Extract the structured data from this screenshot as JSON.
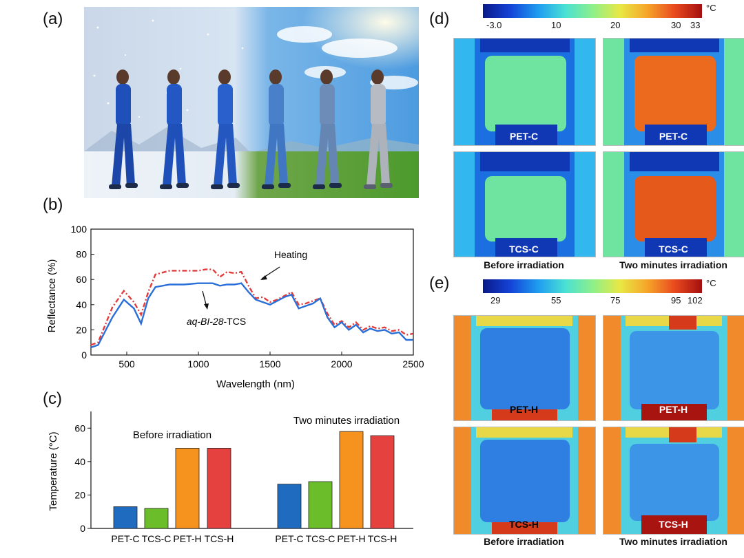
{
  "panels": {
    "a": "(a)",
    "b": "(b)",
    "c": "(c)",
    "d": "(d)",
    "e": "(e)"
  },
  "panel_b": {
    "ylabel": "Reflectance (%)",
    "xlabel": "Wavelength (nm)",
    "annotation_heating": "Heating",
    "annotation_sample_prefix": "aq-BI-28",
    "annotation_sample_suffix": "-TCS"
  },
  "panel_c": {
    "ylabel": "Temperature (°C)",
    "group1_label": "Before irradiation",
    "group2_label": "Two minutes irradiation"
  },
  "panel_d": {
    "unit": "°C",
    "ticks": [
      "-3.0",
      "10",
      "20",
      "30",
      "33"
    ],
    "labels": [
      "PET-C",
      "PET-C",
      "TCS-C",
      "TCS-C"
    ],
    "captions": [
      "Before irradiation",
      "Two minutes irradiation"
    ]
  },
  "panel_e": {
    "unit": "°C",
    "ticks": [
      "29",
      "55",
      "75",
      "95",
      "102"
    ],
    "labels": [
      "PET-H",
      "PET-H",
      "TCS-H",
      "TCS-H"
    ],
    "captions": [
      "Before irradiation",
      "Two minutes irradiation"
    ]
  },
  "chart_data": [
    {
      "type": "line",
      "xlim": [
        250,
        2500
      ],
      "ylim": [
        0,
        100
      ],
      "xticks": [
        500,
        1000,
        1500,
        2000,
        2500
      ],
      "yticks": [
        0,
        20,
        40,
        60,
        80,
        100
      ],
      "series": [
        {
          "name": "Heating",
          "color": "#e23b3b",
          "style": "dash-dot",
          "x": [
            250,
            300,
            400,
            480,
            550,
            600,
            650,
            700,
            800,
            900,
            1000,
            1050,
            1100,
            1150,
            1200,
            1250,
            1300,
            1350,
            1400,
            1450,
            1500,
            1550,
            1600,
            1650,
            1700,
            1750,
            1800,
            1850,
            1900,
            1950,
            2000,
            2050,
            2100,
            2150,
            2200,
            2250,
            2300,
            2350,
            2400,
            2450,
            2500
          ],
          "y": [
            8,
            10,
            38,
            51,
            42,
            32,
            50,
            64,
            67,
            67,
            67,
            68,
            68,
            62,
            66,
            65,
            66,
            55,
            45,
            46,
            42,
            44,
            47,
            50,
            40,
            41,
            43,
            45,
            33,
            24,
            27,
            22,
            26,
            20,
            23,
            21,
            22,
            19,
            20,
            16,
            17
          ]
        },
        {
          "name": "aq-BI-28-TCS",
          "color": "#2a6fd8",
          "style": "solid",
          "x": [
            250,
            300,
            400,
            480,
            550,
            600,
            650,
            700,
            800,
            900,
            1000,
            1050,
            1100,
            1150,
            1200,
            1250,
            1300,
            1350,
            1400,
            1450,
            1500,
            1550,
            1600,
            1650,
            1700,
            1750,
            1800,
            1850,
            1900,
            1950,
            2000,
            2050,
            2100,
            2150,
            2200,
            2250,
            2300,
            2350,
            2400,
            2450,
            2500
          ],
          "y": [
            6,
            8,
            30,
            44,
            37,
            25,
            45,
            54,
            56,
            56,
            57,
            57,
            57,
            55,
            56,
            56,
            57,
            50,
            44,
            42,
            40,
            43,
            46,
            48,
            37,
            39,
            41,
            45,
            30,
            22,
            26,
            20,
            24,
            18,
            21,
            19,
            20,
            17,
            18,
            12,
            12
          ]
        }
      ]
    },
    {
      "type": "bar",
      "ylim": [
        0,
        70
      ],
      "yticks": [
        0,
        20,
        40,
        60
      ],
      "categories": [
        "PET-C",
        "TCS-C",
        "PET-H",
        "TCS-H",
        "PET-C",
        "TCS-C",
        "PET-H",
        "TCS-H"
      ],
      "values": [
        13,
        12,
        48,
        48,
        26.5,
        28,
        58,
        55.5
      ],
      "colors": [
        "#1f6bbf",
        "#6bbe2a",
        "#f6921e",
        "#e5413f",
        "#1f6bbf",
        "#6bbe2a",
        "#f6921e",
        "#e5413f"
      ]
    }
  ]
}
